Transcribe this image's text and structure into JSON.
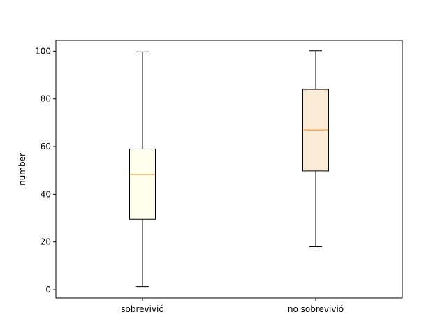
{
  "chart_data": {
    "type": "box",
    "title": "",
    "xlabel": "",
    "ylabel": "number",
    "ylim": [
      -3.5,
      104.5
    ],
    "yticks": [
      0,
      20,
      40,
      60,
      80,
      100
    ],
    "grid": false,
    "categories": [
      "sobrevivió",
      "no sobrevivió"
    ],
    "boxes": [
      {
        "category": "sobrevivió",
        "whisker_low": 1.3,
        "q1": 29.5,
        "median": 48.3,
        "q3": 59.0,
        "whisker_high": 99.7,
        "fill": "#ffffee"
      },
      {
        "category": "no sobrevivió",
        "whisker_low": 18.0,
        "q1": 49.8,
        "median": 67.0,
        "q3": 84.0,
        "whisker_high": 100.2,
        "fill": "#faebd7"
      }
    ],
    "colors": {
      "median": "#ff7f0e",
      "box_edge": "#000000"
    }
  }
}
